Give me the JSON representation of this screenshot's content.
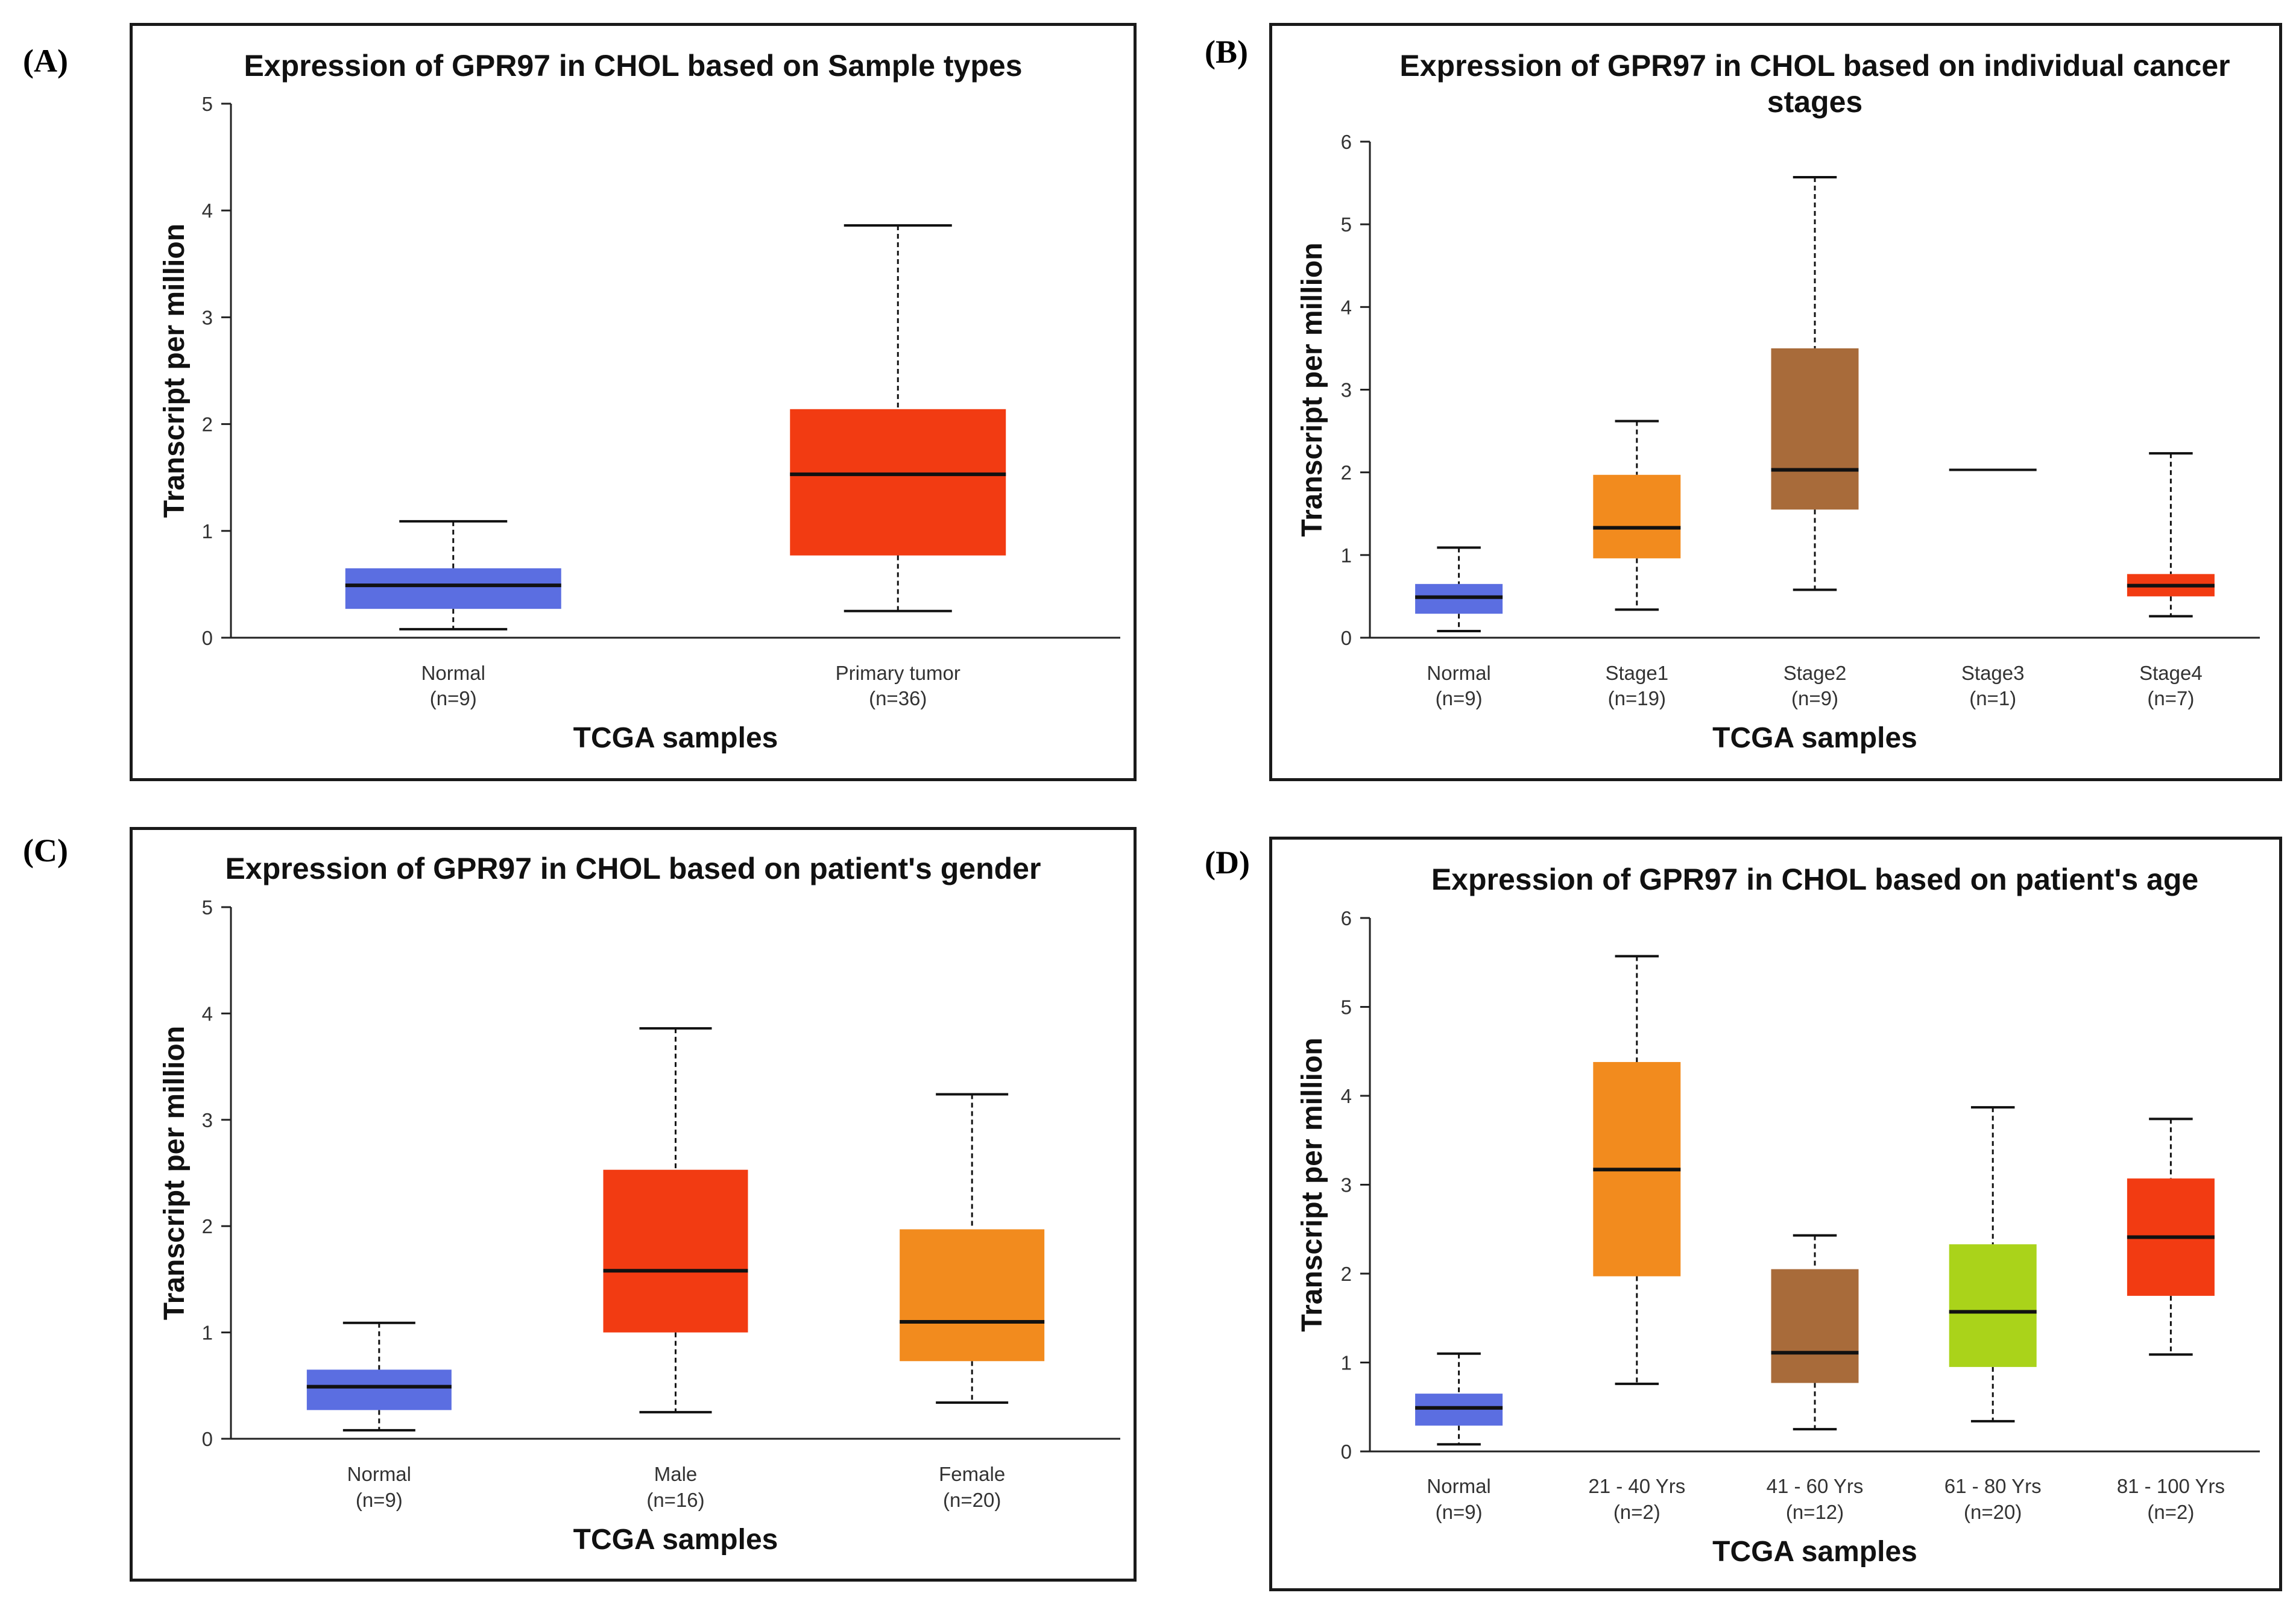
{
  "panels": [
    {
      "tag": "(A)"
    },
    {
      "tag": "(B)"
    },
    {
      "tag": "(C)"
    },
    {
      "tag": "(D)"
    }
  ],
  "chart_data": [
    {
      "id": "A",
      "type": "box",
      "title": [
        "Expression of GPR97 in CHOL based on Sample types"
      ],
      "xlabel": "TCGA samples",
      "ylabel": "Transcript per million",
      "ylim": [
        0,
        5
      ],
      "yticks": [
        0,
        1,
        2,
        3,
        4,
        5
      ],
      "categories": [
        {
          "name": "Normal",
          "n": "(n=9)",
          "color": "#5b6ee1",
          "min": 0.08,
          "q1": 0.27,
          "median": 0.49,
          "q3": 0.65,
          "max": 1.09
        },
        {
          "name": "Primary tumor",
          "n": "(n=36)",
          "color": "#f23b12",
          "min": 0.25,
          "q1": 0.77,
          "median": 1.53,
          "q3": 2.14,
          "max": 3.86
        }
      ]
    },
    {
      "id": "B",
      "type": "box",
      "title": [
        "Expression of GPR97 in CHOL based on individual cancer",
        "stages"
      ],
      "xlabel": "TCGA samples",
      "ylabel": "Transcript per million",
      "ylim": [
        0,
        6
      ],
      "yticks": [
        0,
        1,
        2,
        3,
        4,
        5,
        6
      ],
      "categories": [
        {
          "name": "Normal",
          "n": "(n=9)",
          "color": "#5b6ee1",
          "min": 0.08,
          "q1": 0.29,
          "median": 0.49,
          "q3": 0.65,
          "max": 1.09
        },
        {
          "name": "Stage1",
          "n": "(n=19)",
          "color": "#f28b1e",
          "min": 0.34,
          "q1": 0.96,
          "median": 1.33,
          "q3": 1.97,
          "max": 2.62
        },
        {
          "name": "Stage2",
          "n": "(n=9)",
          "color": "#a86b3a",
          "min": 0.58,
          "q1": 1.55,
          "median": 2.03,
          "q3": 3.5,
          "max": 5.57
        },
        {
          "name": "Stage3",
          "n": "(n=1)",
          "color": "#000000",
          "min": 2.03,
          "q1": 2.03,
          "median": 2.03,
          "q3": 2.03,
          "max": 2.03
        },
        {
          "name": "Stage4",
          "n": "(n=7)",
          "color": "#f23b12",
          "min": 0.26,
          "q1": 0.5,
          "median": 0.63,
          "q3": 0.77,
          "max": 2.23
        }
      ]
    },
    {
      "id": "C",
      "type": "box",
      "title": [
        "Expression of GPR97 in CHOL based on patient's gender"
      ],
      "xlabel": "TCGA samples",
      "ylabel": "Transcript per million",
      "ylim": [
        0,
        5
      ],
      "yticks": [
        0,
        1,
        2,
        3,
        4,
        5
      ],
      "categories": [
        {
          "name": "Normal",
          "n": "(n=9)",
          "color": "#5b6ee1",
          "min": 0.08,
          "q1": 0.27,
          "median": 0.49,
          "q3": 0.65,
          "max": 1.09
        },
        {
          "name": "Male",
          "n": "(n=16)",
          "color": "#f23b12",
          "min": 0.25,
          "q1": 1.0,
          "median": 1.58,
          "q3": 2.53,
          "max": 3.86
        },
        {
          "name": "Female",
          "n": "(n=20)",
          "color": "#f28b1e",
          "min": 0.34,
          "q1": 0.73,
          "median": 1.1,
          "q3": 1.97,
          "max": 3.24
        }
      ]
    },
    {
      "id": "D",
      "type": "box",
      "title": [
        "Expression of GPR97 in CHOL based on patient's age"
      ],
      "xlabel": "TCGA samples",
      "ylabel": "Transcript per million",
      "ylim": [
        0,
        6
      ],
      "yticks": [
        0,
        1,
        2,
        3,
        4,
        5,
        6
      ],
      "categories": [
        {
          "name": "Normal",
          "n": "(n=9)",
          "color": "#5b6ee1",
          "min": 0.08,
          "q1": 0.29,
          "median": 0.49,
          "q3": 0.65,
          "max": 1.1
        },
        {
          "name": "21 - 40 Yrs",
          "n": "(n=2)",
          "color": "#f28b1e",
          "min": 0.76,
          "q1": 1.97,
          "median": 3.17,
          "q3": 4.38,
          "max": 5.57
        },
        {
          "name": "41 - 60 Yrs",
          "n": "(n=12)",
          "color": "#a86b3a",
          "min": 0.25,
          "q1": 0.77,
          "median": 1.11,
          "q3": 2.05,
          "max": 2.43
        },
        {
          "name": "61 - 80 Yrs",
          "n": "(n=20)",
          "color": "#aad31a",
          "min": 0.34,
          "q1": 0.95,
          "median": 1.57,
          "q3": 2.33,
          "max": 3.87
        },
        {
          "name": "81 - 100 Yrs",
          "n": "(n=2)",
          "color": "#f23b12",
          "min": 1.09,
          "q1": 1.75,
          "median": 2.41,
          "q3": 3.07,
          "max": 3.74
        }
      ]
    }
  ]
}
